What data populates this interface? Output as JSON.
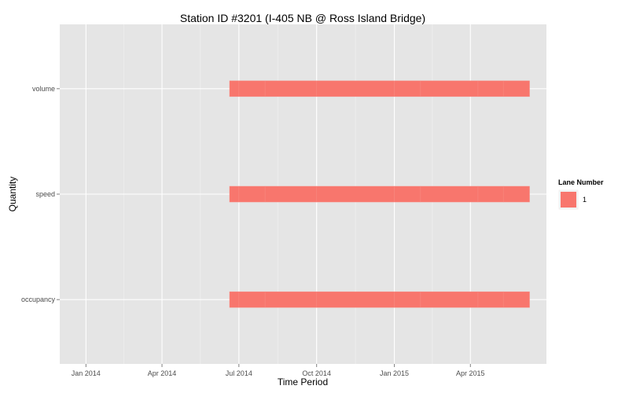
{
  "chart_data": {
    "type": "bar",
    "title": "Station ID #3201 (I-405 NB @ Ross Island Bridge)",
    "xlabel": "Time Period",
    "ylabel": "Quantity",
    "x_tick_labels": [
      "Jan 2014",
      "Apr 2014",
      "Jul 2014",
      "Oct 2014",
      "Jan 2015",
      "Apr 2015"
    ],
    "x_tick_dates": [
      "2014-01-01",
      "2014-04-01",
      "2014-07-01",
      "2014-10-01",
      "2015-01-01",
      "2015-04-01"
    ],
    "xlim": [
      "2013-12-01",
      "2015-06-30"
    ],
    "categories": [
      "volume",
      "speed",
      "occupancy"
    ],
    "series": [
      {
        "name": "1",
        "color": "#F8766D",
        "segments": {
          "volume": [
            [
              "2014-06-20",
              "2014-07-01"
            ],
            [
              "2014-07-01",
              "2014-08-01"
            ],
            [
              "2014-08-01",
              "2014-10-01"
            ],
            [
              "2014-10-01",
              "2015-01-01"
            ],
            [
              "2015-01-01",
              "2015-02-01"
            ],
            [
              "2015-02-01",
              "2015-04-10"
            ],
            [
              "2015-04-10",
              "2015-05-10"
            ],
            [
              "2015-05-10",
              "2015-06-10"
            ]
          ],
          "speed": [
            [
              "2014-06-20",
              "2014-07-01"
            ],
            [
              "2014-07-01",
              "2014-08-01"
            ],
            [
              "2014-08-01",
              "2014-10-01"
            ],
            [
              "2014-10-01",
              "2015-01-01"
            ],
            [
              "2015-01-01",
              "2015-02-01"
            ],
            [
              "2015-02-01",
              "2015-04-10"
            ],
            [
              "2015-04-10",
              "2015-05-10"
            ],
            [
              "2015-05-10",
              "2015-06-10"
            ]
          ],
          "occupancy": [
            [
              "2014-06-20",
              "2014-07-01"
            ],
            [
              "2014-07-01",
              "2014-08-01"
            ],
            [
              "2014-08-01",
              "2014-10-01"
            ],
            [
              "2014-10-01",
              "2015-01-01"
            ],
            [
              "2015-01-01",
              "2015-02-01"
            ],
            [
              "2015-02-01",
              "2015-04-10"
            ],
            [
              "2015-04-10",
              "2015-05-10"
            ],
            [
              "2015-05-10",
              "2015-06-10"
            ]
          ]
        }
      }
    ],
    "legend": {
      "title": "Lane Number",
      "entries": [
        "1"
      ],
      "position": "right"
    },
    "grid": true,
    "colors": {
      "panel_background": "#E5E5E5",
      "grid_major": "#FFFFFF",
      "grid_minor": "#F2F2F2",
      "bar": "#F8766D"
    }
  }
}
